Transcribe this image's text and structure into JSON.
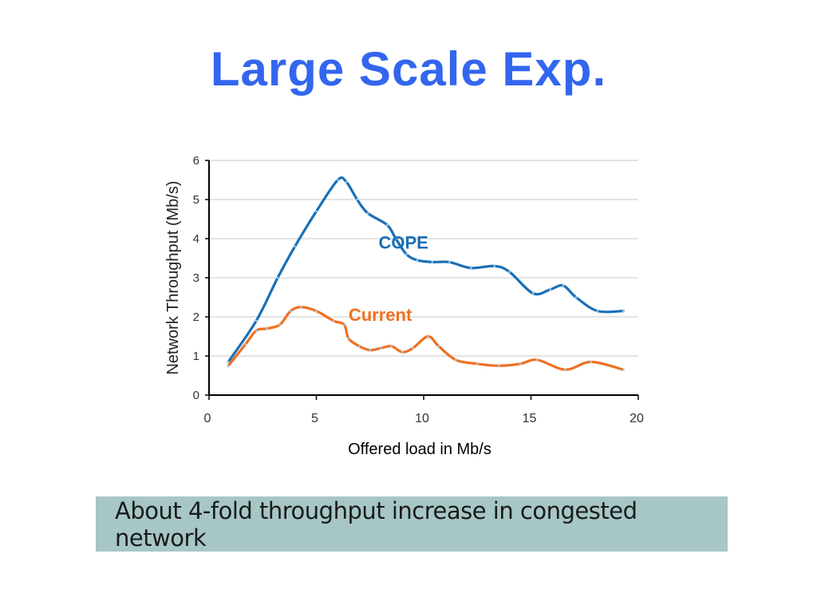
{
  "slide": {
    "title": "Large Scale Exp.",
    "caption": "About 4-fold throughput increase in congested network"
  },
  "chart_data": {
    "type": "line",
    "xlabel": "Offered load in Mb/s",
    "ylabel": "Network Throughput (Mb/s)",
    "xlim": [
      0,
      20
    ],
    "ylim": [
      0,
      6
    ],
    "xticks": [
      0,
      5,
      10,
      15,
      20
    ],
    "yticks": [
      0,
      1,
      2,
      3,
      4,
      5,
      6
    ],
    "grid": "horizontal",
    "series": [
      {
        "name": "COPE",
        "color": "#1a6fb5",
        "x": [
          0.9,
          2.2,
          3.2,
          4.0,
          5.0,
          6.0,
          6.4,
          6.9,
          7.4,
          8.3,
          8.7,
          9.2,
          9.7,
          10.4,
          11.2,
          12.2,
          13.3,
          14.0,
          15.1,
          15.9,
          16.5,
          17.1,
          18.1,
          19.3
        ],
        "y": [
          0.85,
          1.9,
          3.0,
          3.8,
          4.7,
          5.5,
          5.45,
          5.0,
          4.65,
          4.35,
          4.0,
          3.6,
          3.45,
          3.4,
          3.4,
          3.25,
          3.3,
          3.15,
          2.6,
          2.7,
          2.8,
          2.5,
          2.15,
          2.15
        ],
        "label": "COPE"
      },
      {
        "name": "Current",
        "color": "#f07020",
        "x": [
          0.9,
          1.7,
          2.2,
          2.7,
          3.3,
          3.8,
          4.3,
          5.0,
          5.8,
          6.3,
          6.5,
          7.0,
          7.5,
          8.0,
          8.5,
          9.0,
          9.5,
          10.2,
          10.7,
          11.5,
          12.5,
          13.5,
          14.5,
          15.3,
          16.6,
          17.8,
          19.3
        ],
        "y": [
          0.75,
          1.3,
          1.65,
          1.7,
          1.8,
          2.15,
          2.25,
          2.15,
          1.9,
          1.8,
          1.45,
          1.25,
          1.15,
          1.2,
          1.25,
          1.1,
          1.2,
          1.5,
          1.25,
          0.9,
          0.8,
          0.75,
          0.8,
          0.9,
          0.65,
          0.85,
          0.65
        ],
        "label": "Current"
      }
    ]
  }
}
